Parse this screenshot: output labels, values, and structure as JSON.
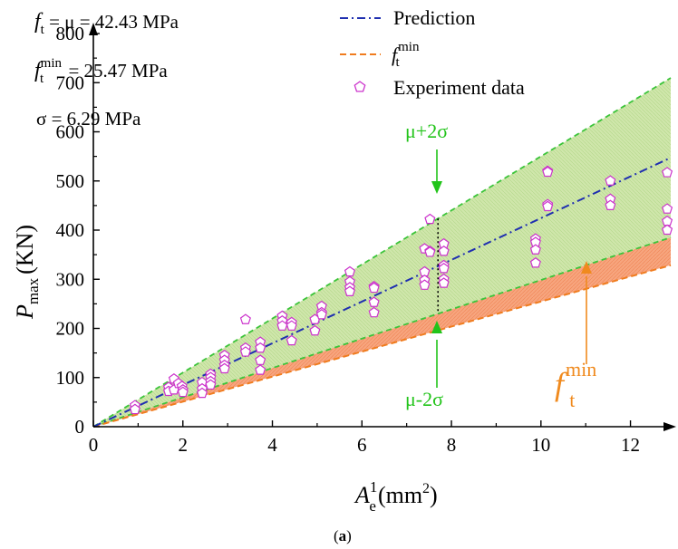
{
  "chart_data": {
    "type": "line+scatter",
    "xlabel_main": "A",
    "xlabel_sub": "e",
    "xlabel_sup": "1",
    "xlabel_units": "(mm",
    "xlabel_units_sup": "2",
    "xlabel_units_close": ")",
    "ylabel_main": "P",
    "ylabel_sub": "max",
    "ylabel_units": "(KN)",
    "xlim": [
      0,
      12.9
    ],
    "ylim": [
      0,
      800
    ],
    "xticks": [
      0,
      2,
      4,
      6,
      8,
      10,
      12
    ],
    "yticks": [
      0,
      100,
      200,
      300,
      400,
      500,
      600,
      700,
      800
    ],
    "tick_labels_x": [
      "0",
      "2",
      "4",
      "6",
      "8",
      "10",
      "12"
    ],
    "tick_labels_y": [
      "0",
      "100",
      "200",
      "300",
      "400",
      "500",
      "600",
      "700",
      "800"
    ],
    "series": [
      {
        "name": "Prediction",
        "style": "dash-dot",
        "color": "#1f2fb0",
        "slope": 42.43
      },
      {
        "name": "upper band (μ+2σ)",
        "style": "dashed",
        "color": "#3cc43a",
        "slope": 55.01
      },
      {
        "name": "lower band (μ-2σ)",
        "style": "dashed",
        "color": "#3cc43a",
        "slope": 29.85
      },
      {
        "name": "f_t^min",
        "style": "dashed",
        "color": "#f07c1e",
        "slope": 25.47
      }
    ],
    "experiment_data": [
      [
        0.93,
        43
      ],
      [
        0.93,
        35
      ],
      [
        1.68,
        80
      ],
      [
        1.68,
        72
      ],
      [
        1.8,
        97
      ],
      [
        1.8,
        75
      ],
      [
        1.9,
        88
      ],
      [
        1.98,
        82
      ],
      [
        2.0,
        75
      ],
      [
        2.0,
        70
      ],
      [
        2.43,
        90
      ],
      [
        2.43,
        77
      ],
      [
        2.43,
        68
      ],
      [
        2.62,
        107
      ],
      [
        2.62,
        100
      ],
      [
        2.62,
        92
      ],
      [
        2.62,
        85
      ],
      [
        2.93,
        145
      ],
      [
        2.93,
        135
      ],
      [
        2.93,
        125
      ],
      [
        2.93,
        118
      ],
      [
        3.4,
        218
      ],
      [
        3.4,
        160
      ],
      [
        3.4,
        152
      ],
      [
        3.73,
        172
      ],
      [
        3.73,
        160
      ],
      [
        3.73,
        135
      ],
      [
        3.73,
        115
      ],
      [
        4.22,
        225
      ],
      [
        4.22,
        215
      ],
      [
        4.22,
        205
      ],
      [
        4.43,
        212
      ],
      [
        4.43,
        205
      ],
      [
        4.43,
        175
      ],
      [
        4.95,
        218
      ],
      [
        4.95,
        195
      ],
      [
        5.1,
        245
      ],
      [
        5.1,
        232
      ],
      [
        5.1,
        228
      ],
      [
        5.73,
        315
      ],
      [
        5.73,
        295
      ],
      [
        5.73,
        283
      ],
      [
        5.73,
        275
      ],
      [
        6.27,
        285
      ],
      [
        6.27,
        282
      ],
      [
        6.27,
        253
      ],
      [
        6.27,
        232
      ],
      [
        7.4,
        362
      ],
      [
        7.4,
        315
      ],
      [
        7.4,
        298
      ],
      [
        7.4,
        288
      ],
      [
        7.52,
        422
      ],
      [
        7.52,
        357
      ],
      [
        7.52,
        355
      ],
      [
        7.83,
        372
      ],
      [
        7.83,
        357
      ],
      [
        7.83,
        328
      ],
      [
        7.83,
        322
      ],
      [
        7.83,
        300
      ],
      [
        7.83,
        292
      ],
      [
        9.88,
        382
      ],
      [
        9.88,
        375
      ],
      [
        9.88,
        360
      ],
      [
        9.88,
        333
      ],
      [
        10.15,
        520
      ],
      [
        10.15,
        518
      ],
      [
        10.15,
        452
      ],
      [
        10.15,
        448
      ],
      [
        11.55,
        500
      ],
      [
        11.55,
        463
      ],
      [
        11.55,
        450
      ],
      [
        12.82,
        517
      ],
      [
        12.82,
        443
      ],
      [
        12.82,
        418
      ],
      [
        12.82,
        400
      ]
    ],
    "marker_x": 7.7,
    "marker_upper_y": 423.6,
    "marker_lower_y": 229.8
  },
  "legend": {
    "prediction": "Prediction",
    "ftmin_f": "f",
    "ftmin_sub": "t",
    "ftmin_sup": "min",
    "experiment": "Experiment data"
  },
  "params": {
    "line1_f": "f",
    "line1_sub": "t",
    "line1_rest": " = μ = 42.43 MPa",
    "line2_f": "f",
    "line2_sup": "min",
    "line2_sub": "t",
    "line2_rest": " = 25.47 MPa",
    "line3": "σ = 6.29 MPa"
  },
  "annotations": {
    "upper": "μ+2σ",
    "lower": "μ-2σ",
    "ftmin_f": "f",
    "ftmin_sub": "t",
    "ftmin_sup": "min"
  },
  "caption": {
    "open": "(",
    "letter": "a",
    "close": ")"
  },
  "colors": {
    "prediction": "#1f2fb0",
    "band": "#3cc43a",
    "band_fill": "#c9e3a3",
    "ftmin": "#f07c1e",
    "ftmin_fill": "#f59a6e",
    "marker": "#cc33cc",
    "annotation_green": "#22c41a",
    "annotation_orange": "#f08a1e"
  }
}
